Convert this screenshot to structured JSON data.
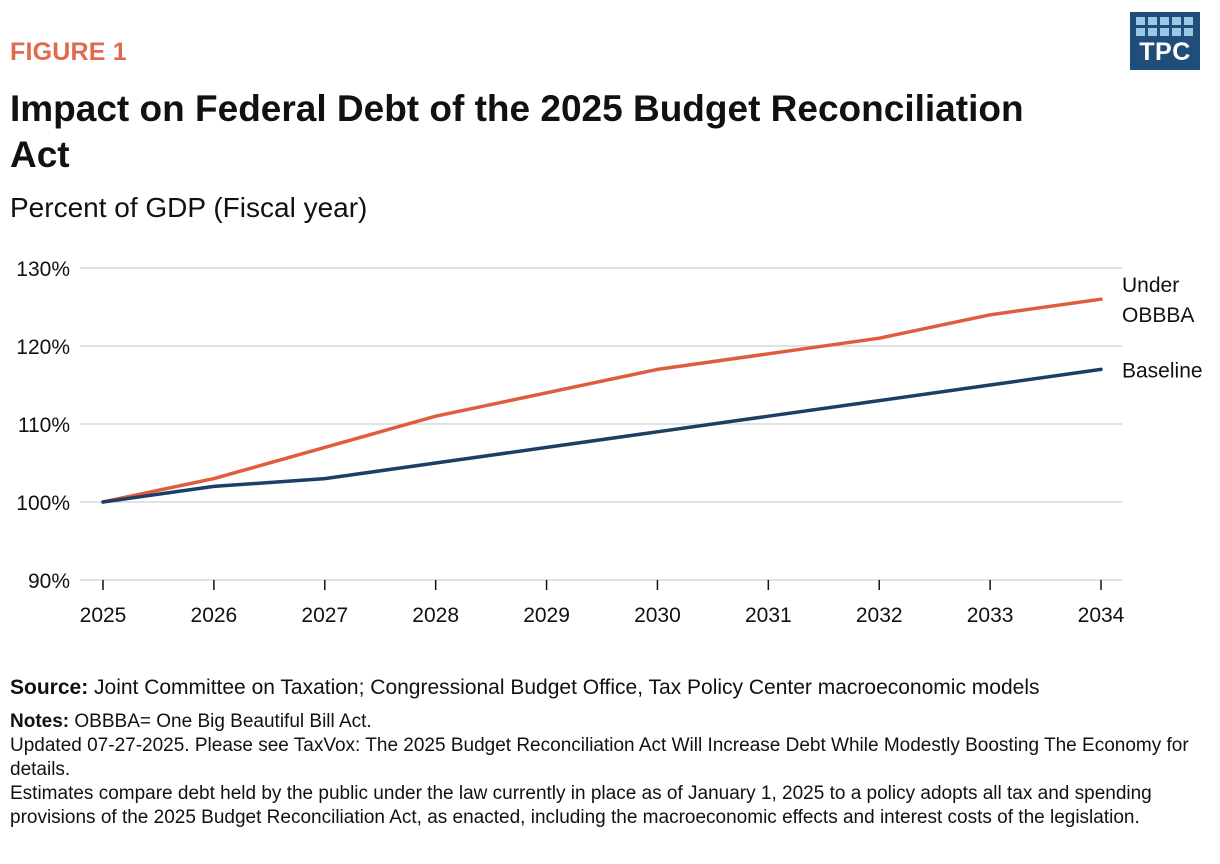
{
  "header": {
    "figure_label": "FIGURE 1",
    "title": "Impact on Federal Debt of the 2025 Budget Reconciliation Act",
    "subtitle": "Percent of GDP (Fiscal year)",
    "logo_text": "TPC"
  },
  "colors": {
    "accent": "#e06a4e",
    "obbba": "#e05c3f",
    "baseline": "#1b3f66",
    "logo": "#1e4e79",
    "grid": "#d9d9d9"
  },
  "chart_data": {
    "type": "line",
    "x": [
      "2025",
      "2026",
      "2027",
      "2028",
      "2029",
      "2030",
      "2031",
      "2032",
      "2033",
      "2034"
    ],
    "series": [
      {
        "name": "Under OBBBA",
        "label_lines": [
          "Under",
          "OBBBA"
        ],
        "color": "#e05c3f",
        "values": [
          100,
          103,
          107,
          111,
          114,
          117,
          119,
          121,
          124,
          126
        ]
      },
      {
        "name": "Baseline",
        "label_lines": [
          "Baseline"
        ],
        "color": "#1b3f66",
        "values": [
          100,
          102,
          103,
          105,
          107,
          109,
          111,
          113,
          115,
          117
        ]
      }
    ],
    "ylim": [
      90,
      130
    ],
    "yticks": [
      90,
      100,
      110,
      120,
      130
    ],
    "ytick_labels": [
      "90%",
      "100%",
      "110%",
      "120%",
      "130%"
    ],
    "grid": true,
    "legend": "direct labels at line ends"
  },
  "footer": {
    "source_label": "Source:",
    "source_text": " Joint Committee on Taxation; Congressional Budget Office, Tax Policy Center macroeconomic models",
    "notes_label": "Notes:",
    "notes_text": " OBBBA= One Big Beautiful Bill Act.",
    "updated_text": "Updated 07-27-2025. Please see TaxVox: The 2025 Budget Reconciliation Act Will Increase Debt While Modestly Boosting The Economy for details.",
    "estimates_text": "Estimates compare debt held by the public under the law currently in place as of January 1, 2025 to a policy adopts all tax and spending provisions of the 2025 Budget Reconciliation Act, as enacted, including the macroeconomic effects and interest costs of the legislation."
  }
}
